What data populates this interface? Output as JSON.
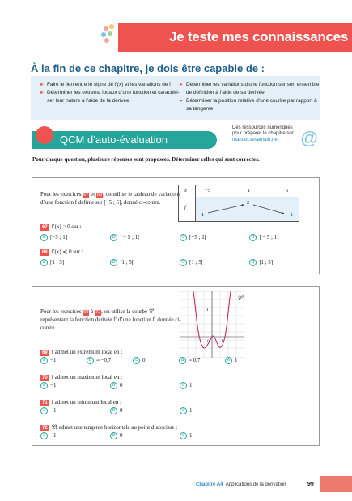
{
  "header": {
    "title": "Je teste mes connaissances"
  },
  "objectives": {
    "heading": "À la fin de ce chapitre, je dois être capable de :",
    "left": [
      "Faire le lien entre le signe de f′(x) et les variations de f",
      "Déterminer les extrema locaux d’une fonction et caractéri-",
      "ser leur nature à l’aide de la dérivée"
    ],
    "right": [
      "Déterminer les variations d’une fonction sur son ensemble",
      "de définition à l’aide de sa dérivée",
      "Déterminer la position relative d’une courbe par rapport à",
      "sa tangente"
    ]
  },
  "qcm": {
    "title": "QCM d’auto-évaluation",
    "resources": [
      "Des ressources numériques",
      "pour préparer le chapitre sur",
      "manuel.sesamath.net"
    ],
    "at_icon": "@",
    "intro": "Pour chaque question, plusieurs réponses sont proposées. Déterminer celles qui sont correctes."
  },
  "block1": {
    "text": [
      "Pour les exercices",
      "67",
      "et",
      "68",
      ", on utilise le tableau",
      "de variations d’une fonction f définie sur [−5 ; 5],",
      "donné ci-contre."
    ],
    "table": {
      "x_label": "x",
      "x_values": [
        "−5",
        "1",
        "5"
      ],
      "f_label": "f",
      "f_values": [
        "1",
        "2",
        "−2"
      ]
    },
    "questions": [
      {
        "num": "67",
        "text": "f′(x) > 0 sur :",
        "options": [
          [
            "a",
            "[−5 ; 1]"
          ],
          [
            "b",
            "] − 5 ; 1["
          ],
          [
            "c",
            "[−5 ; 1["
          ],
          [
            "d",
            "] − 5 ; 1]"
          ]
        ]
      },
      {
        "num": "68",
        "text": "f′(x) ⩽ 0 sur :",
        "options": [
          [
            "a",
            "[1 ; 5]"
          ],
          [
            "b",
            "]1 ; 5["
          ],
          [
            "c",
            "[1 ; 5["
          ],
          [
            "d",
            "]1 ; 5]"
          ]
        ]
      }
    ]
  },
  "block2": {
    "text": [
      "Pour les exercices",
      "69",
      "à",
      "72",
      ", on utilise la courbe",
      "𝒞′ représentant la fonction dérivée f′ d’une",
      "fonction f, donnée ci-contre."
    ],
    "graph": {
      "curve_label": "𝒞′",
      "y_tick": "1",
      "x_tick": "1",
      "origin": "0"
    },
    "questions": [
      {
        "num": "69",
        "text": "f admet un extremum local en :",
        "options": [
          [
            "a",
            "−1"
          ],
          [
            "b",
            "≈ −0,7"
          ],
          [
            "c",
            "0"
          ],
          [
            "d",
            "≈ 0,7"
          ],
          [
            "e",
            "1"
          ]
        ]
      },
      {
        "num": "70",
        "text": "f admet un maximum local en :",
        "options": [
          [
            "a",
            "−1"
          ],
          [
            "b",
            "0"
          ],
          [
            "c",
            "1"
          ]
        ]
      },
      {
        "num": "71",
        "text": "f admet un minimum local en :",
        "options": [
          [
            "a",
            "−1"
          ],
          [
            "b",
            "0"
          ],
          [
            "c",
            "1"
          ]
        ]
      },
      {
        "num": "72",
        "text": "𝒞f admet une tangente horizontale au point d’abscisse :",
        "options": [
          [
            "a",
            "−1"
          ],
          [
            "b",
            "0"
          ],
          [
            "c",
            "1"
          ]
        ]
      }
    ]
  },
  "footer": {
    "chapter": "Chapitre A4",
    "title": "Applications de la dérivation",
    "page": "99"
  },
  "colors": {
    "accent_red": "#ee5350",
    "teal": "#26a69a",
    "blue": "#1f5f8b",
    "light_blue_box": "#e3f0f8",
    "link": "#2a8cc4"
  }
}
